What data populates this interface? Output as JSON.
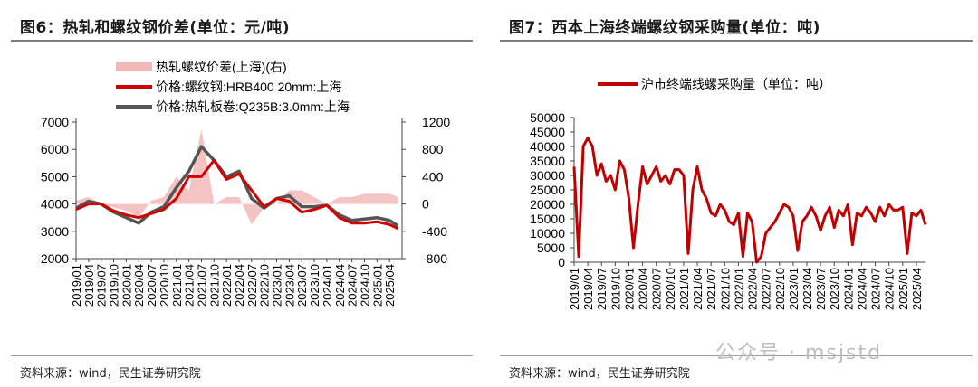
{
  "left": {
    "title": "图6：热轧和螺纹钢价差(单位：元/吨)",
    "source": "资料来源：wind，民生证券研究院",
    "legend": [
      {
        "label": "热轧螺纹价差(上海)(右)",
        "color": "#f2b8b8",
        "kind": "area"
      },
      {
        "label": "价格:螺纹钢:HRB400 20mm:上海",
        "color": "#d40000",
        "kind": "line"
      },
      {
        "label": "价格:热轧板卷:Q235B:3.0mm:上海",
        "color": "#555555",
        "kind": "line"
      }
    ]
  },
  "right": {
    "title": "图7：西本上海终端螺纹钢采购量(单位：吨)",
    "source": "资料来源：wind，民生证券研究院",
    "legend": [
      {
        "label": "沪市终端线螺采购量（单位：吨）",
        "color": "#c00000",
        "kind": "line"
      }
    ]
  },
  "watermark": "公众号 · msjstd",
  "chart_data": [
    {
      "type": "line",
      "left_axis": {
        "ylim": [
          2000,
          7000
        ],
        "ticks": [
          2000,
          3000,
          4000,
          5000,
          6000,
          7000
        ]
      },
      "right_axis": {
        "ylim": [
          -800,
          1200
        ],
        "ticks": [
          -800,
          -400,
          0,
          400,
          800,
          1200
        ]
      },
      "x_tick_labels": [
        "2019/01",
        "2019/04",
        "2019/07",
        "2019/10",
        "2020/01",
        "2020/04",
        "2020/07",
        "2020/10",
        "2021/01",
        "2021/04",
        "2021/07",
        "2021/10",
        "2022/01",
        "2022/04",
        "2022/07",
        "2022/10",
        "2023/01",
        "2023/04",
        "2023/07",
        "2023/10",
        "2024/01",
        "2024/04",
        "2024/07",
        "2024/10",
        "2025/01",
        "2025/04"
      ],
      "x": [
        "2019/01",
        "2019/04",
        "2019/07",
        "2019/10",
        "2020/01",
        "2020/04",
        "2020/07",
        "2020/10",
        "2021/01",
        "2021/04",
        "2021/07",
        "2021/10",
        "2022/01",
        "2022/04",
        "2022/07",
        "2022/10",
        "2023/01",
        "2023/04",
        "2023/07",
        "2023/10",
        "2024/01",
        "2024/04",
        "2024/07",
        "2024/10",
        "2025/01",
        "2025/04",
        "2025/06"
      ],
      "series": [
        {
          "name": "价格:螺纹钢:HRB400 20mm:上海",
          "axis": "left",
          "color": "#d40000",
          "values": [
            3800,
            4000,
            4000,
            3750,
            3600,
            3500,
            3650,
            3800,
            4200,
            5000,
            5000,
            5600,
            4900,
            5100,
            4500,
            3900,
            4200,
            4100,
            3700,
            3800,
            3950,
            3500,
            3300,
            3300,
            3350,
            3250,
            3100
          ]
        },
        {
          "name": "价格:热轧板卷:Q235B:3.0mm:上海",
          "axis": "left",
          "color": "#555555",
          "values": [
            3850,
            4100,
            4000,
            3700,
            3500,
            3300,
            3700,
            3900,
            4600,
            5200,
            6100,
            5600,
            5000,
            5200,
            4200,
            3850,
            4200,
            4300,
            3900,
            3900,
            3950,
            3600,
            3400,
            3450,
            3500,
            3400,
            3200
          ]
        },
        {
          "name": "热轧螺纹价差(上海)(右)",
          "axis": "right",
          "color": "#f2b8b8",
          "values": [
            50,
            100,
            0,
            -50,
            -100,
            -200,
            50,
            100,
            400,
            200,
            1100,
            0,
            100,
            100,
            -300,
            -50,
            0,
            200,
            200,
            100,
            0,
            100,
            100,
            150,
            150,
            150,
            100
          ]
        }
      ]
    },
    {
      "type": "line",
      "ylim": [
        0,
        50000
      ],
      "yticks": [
        0,
        5000,
        10000,
        15000,
        20000,
        25000,
        30000,
        35000,
        40000,
        45000,
        50000
      ],
      "x_tick_labels": [
        "2019/01",
        "2019/04",
        "2019/07",
        "2019/10",
        "2020/01",
        "2020/04",
        "2020/07",
        "2020/10",
        "2021/01",
        "2021/04",
        "2021/07",
        "2021/10",
        "2022/01",
        "2022/04",
        "2022/07",
        "2022/10",
        "2023/01",
        "2023/04",
        "2023/07",
        "2023/10",
        "2024/01",
        "2024/04",
        "2024/07",
        "2024/10",
        "2025/01",
        "2025/04"
      ],
      "x": [
        "2019/01",
        "2019/02",
        "2019/03",
        "2019/04",
        "2019/05",
        "2019/06",
        "2019/07",
        "2019/08",
        "2019/09",
        "2019/10",
        "2019/11",
        "2019/12",
        "2020/01",
        "2020/02",
        "2020/03",
        "2020/04",
        "2020/05",
        "2020/06",
        "2020/07",
        "2020/08",
        "2020/09",
        "2020/10",
        "2020/11",
        "2020/12",
        "2021/01",
        "2021/02",
        "2021/03",
        "2021/04",
        "2021/05",
        "2021/06",
        "2021/07",
        "2021/08",
        "2021/09",
        "2021/10",
        "2021/11",
        "2021/12",
        "2022/01",
        "2022/02",
        "2022/03",
        "2022/04",
        "2022/05",
        "2022/06",
        "2022/07",
        "2022/08",
        "2022/09",
        "2022/10",
        "2022/11",
        "2022/12",
        "2023/01",
        "2023/02",
        "2023/03",
        "2023/04",
        "2023/05",
        "2023/06",
        "2023/07",
        "2023/08",
        "2023/09",
        "2023/10",
        "2023/11",
        "2023/12",
        "2024/01",
        "2024/02",
        "2024/03",
        "2024/04",
        "2024/05",
        "2024/06",
        "2024/07",
        "2024/08",
        "2024/09",
        "2024/10",
        "2024/11",
        "2024/12",
        "2025/01",
        "2025/02",
        "2025/03",
        "2025/04",
        "2025/05",
        "2025/06"
      ],
      "series": [
        {
          "name": "沪市终端线螺采购量（单位：吨）",
          "color": "#c00000",
          "values": [
            33000,
            2000,
            40000,
            43000,
            40000,
            30000,
            34000,
            28000,
            30000,
            25000,
            35000,
            32000,
            22000,
            5000,
            20000,
            33000,
            27000,
            30000,
            33000,
            28000,
            30000,
            27000,
            32000,
            32000,
            30000,
            3000,
            25000,
            33000,
            25000,
            22000,
            17000,
            16000,
            20000,
            18000,
            14000,
            13000,
            17000,
            2000,
            17000,
            14000,
            0,
            2000,
            10000,
            12000,
            14000,
            17000,
            20000,
            19000,
            16000,
            4000,
            14000,
            16000,
            19000,
            16000,
            11000,
            16000,
            19000,
            12000,
            18000,
            16000,
            20000,
            6000,
            17000,
            16000,
            19000,
            17000,
            14000,
            19000,
            16000,
            20000,
            18000,
            18000,
            19000,
            3000,
            17000,
            16000,
            18000,
            13000
          ]
        }
      ]
    }
  ]
}
